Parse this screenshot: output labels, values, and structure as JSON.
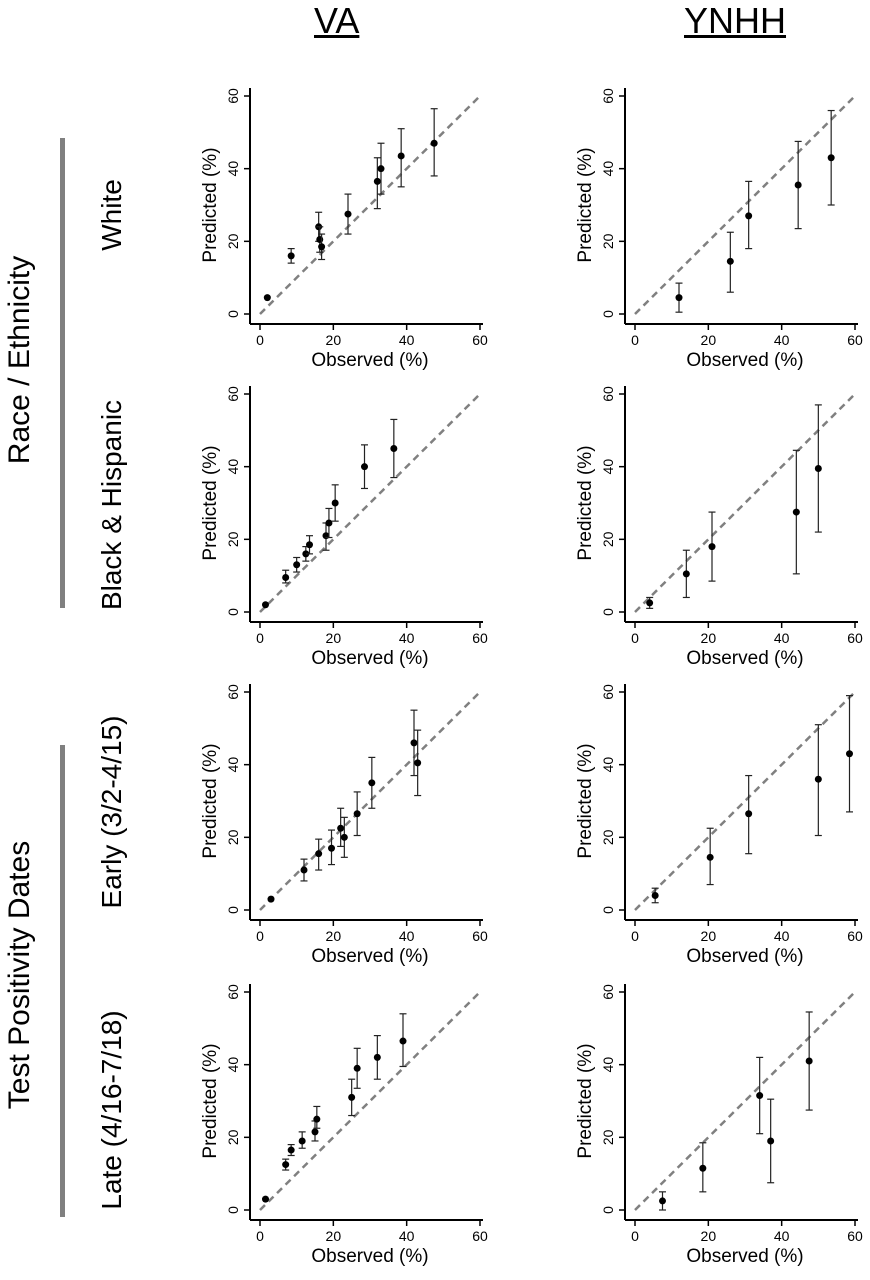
{
  "column_titles": [
    "VA",
    "YNHH"
  ],
  "group_labels": [
    "Race / Ethnicity",
    "Test Positivity Dates"
  ],
  "row_labels": [
    "White",
    "Black & Hispanic",
    "Early (3/2-4/15)",
    "Late (4/16-7/18)"
  ],
  "colors": {
    "points": "#000000",
    "reference_line": "#808080",
    "group_bar": "#808080"
  },
  "chart_data": [
    {
      "type": "scatter",
      "column": "VA",
      "row": "White",
      "xlabel": "Observed (%)",
      "ylabel": "Predicted (%)",
      "xlim": [
        0,
        60
      ],
      "ylim": [
        0,
        60
      ],
      "xticks": [
        0,
        20,
        40,
        60
      ],
      "yticks": [
        0,
        20,
        40,
        60
      ],
      "reference_line": "y = x",
      "points": [
        {
          "x": 2,
          "y": 4.5
        },
        {
          "x": 8.5,
          "y": 16,
          "lo": 14,
          "hi": 18
        },
        {
          "x": 16,
          "y": 24,
          "lo": 20,
          "hi": 28
        },
        {
          "x": 16.3,
          "y": 20.5,
          "lo": 17,
          "hi": 24
        },
        {
          "x": 16.8,
          "y": 18.5,
          "lo": 15,
          "hi": 22
        },
        {
          "x": 24,
          "y": 27.5,
          "lo": 22,
          "hi": 33
        },
        {
          "x": 32,
          "y": 36.5,
          "lo": 29,
          "hi": 43
        },
        {
          "x": 33,
          "y": 40,
          "lo": 33,
          "hi": 47
        },
        {
          "x": 38.5,
          "y": 43.5,
          "lo": 35,
          "hi": 51
        },
        {
          "x": 47.5,
          "y": 47,
          "lo": 38,
          "hi": 56.5
        }
      ]
    },
    {
      "type": "scatter",
      "column": "YNHH",
      "row": "White",
      "xlabel": "Observed (%)",
      "ylabel": "Predicted (%)",
      "xlim": [
        0,
        60
      ],
      "ylim": [
        0,
        60
      ],
      "xticks": [
        0,
        20,
        40,
        60
      ],
      "yticks": [
        0,
        20,
        40,
        60
      ],
      "reference_line": "y = x",
      "points": [
        {
          "x": 12,
          "y": 4.5,
          "lo": 0.5,
          "hi": 8.5
        },
        {
          "x": 26,
          "y": 14.5,
          "lo": 6,
          "hi": 22.5
        },
        {
          "x": 31,
          "y": 27,
          "lo": 18,
          "hi": 36.5
        },
        {
          "x": 44.5,
          "y": 35.5,
          "lo": 23.5,
          "hi": 47.5
        },
        {
          "x": 53.5,
          "y": 43,
          "lo": 30,
          "hi": 56
        }
      ]
    },
    {
      "type": "scatter",
      "column": "VA",
      "row": "Black & Hispanic",
      "xlabel": "Observed (%)",
      "ylabel": "Predicted (%)",
      "xlim": [
        0,
        60
      ],
      "ylim": [
        0,
        60
      ],
      "xticks": [
        0,
        20,
        40,
        60
      ],
      "yticks": [
        0,
        20,
        40,
        60
      ],
      "reference_line": "y = x",
      "points": [
        {
          "x": 1.5,
          "y": 2
        },
        {
          "x": 7,
          "y": 9.5,
          "lo": 8,
          "hi": 11.5
        },
        {
          "x": 10,
          "y": 13,
          "lo": 11,
          "hi": 15
        },
        {
          "x": 12.5,
          "y": 16,
          "lo": 14,
          "hi": 18
        },
        {
          "x": 13.5,
          "y": 18.5,
          "lo": 16,
          "hi": 21
        },
        {
          "x": 18,
          "y": 21,
          "lo": 17,
          "hi": 24.5
        },
        {
          "x": 18.8,
          "y": 24.5,
          "lo": 20.5,
          "hi": 28.5
        },
        {
          "x": 20.5,
          "y": 30,
          "lo": 25,
          "hi": 35
        },
        {
          "x": 28.5,
          "y": 40,
          "lo": 34,
          "hi": 46
        },
        {
          "x": 36.5,
          "y": 45,
          "lo": 37,
          "hi": 53
        }
      ]
    },
    {
      "type": "scatter",
      "column": "YNHH",
      "row": "Black & Hispanic",
      "xlabel": "Observed (%)",
      "ylabel": "Predicted (%)",
      "xlim": [
        0,
        60
      ],
      "ylim": [
        0,
        60
      ],
      "xticks": [
        0,
        20,
        40,
        60
      ],
      "yticks": [
        0,
        20,
        40,
        60
      ],
      "reference_line": "y = x",
      "points": [
        {
          "x": 4,
          "y": 2.5,
          "lo": 1,
          "hi": 4
        },
        {
          "x": 14,
          "y": 10.5,
          "lo": 4,
          "hi": 17
        },
        {
          "x": 21,
          "y": 18,
          "lo": 8.5,
          "hi": 27.5
        },
        {
          "x": 44,
          "y": 27.5,
          "lo": 10.5,
          "hi": 44.5
        },
        {
          "x": 50,
          "y": 39.5,
          "lo": 22,
          "hi": 57
        }
      ]
    },
    {
      "type": "scatter",
      "column": "VA",
      "row": "Early (3/2-4/15)",
      "xlabel": "Observed (%)",
      "ylabel": "Predicted (%)",
      "xlim": [
        0,
        60
      ],
      "ylim": [
        0,
        60
      ],
      "xticks": [
        0,
        20,
        40,
        60
      ],
      "yticks": [
        0,
        20,
        40,
        60
      ],
      "reference_line": "y = x",
      "points": [
        {
          "x": 3,
          "y": 3
        },
        {
          "x": 12,
          "y": 11,
          "lo": 8,
          "hi": 14
        },
        {
          "x": 16,
          "y": 15.5,
          "lo": 11,
          "hi": 19.5
        },
        {
          "x": 19.5,
          "y": 17,
          "lo": 12.5,
          "hi": 22
        },
        {
          "x": 22,
          "y": 22.5,
          "lo": 17.5,
          "hi": 28
        },
        {
          "x": 23,
          "y": 20,
          "lo": 14.5,
          "hi": 25.5
        },
        {
          "x": 26.5,
          "y": 26.5,
          "lo": 20.5,
          "hi": 32.5
        },
        {
          "x": 30.5,
          "y": 35,
          "lo": 28,
          "hi": 42
        },
        {
          "x": 42,
          "y": 46,
          "lo": 37,
          "hi": 55
        },
        {
          "x": 43,
          "y": 40.5,
          "lo": 31.5,
          "hi": 49.5
        }
      ]
    },
    {
      "type": "scatter",
      "column": "YNHH",
      "row": "Early (3/2-4/15)",
      "xlabel": "Observed (%)",
      "ylabel": "Predicted (%)",
      "xlim": [
        0,
        60
      ],
      "ylim": [
        0,
        60
      ],
      "xticks": [
        0,
        20,
        40,
        60
      ],
      "yticks": [
        0,
        20,
        40,
        60
      ],
      "reference_line": "y = x",
      "points": [
        {
          "x": 5.5,
          "y": 4,
          "lo": 2,
          "hi": 6
        },
        {
          "x": 20.5,
          "y": 14.5,
          "lo": 7,
          "hi": 22.5
        },
        {
          "x": 31,
          "y": 26.5,
          "lo": 15.5,
          "hi": 37
        },
        {
          "x": 50,
          "y": 36,
          "lo": 20.5,
          "hi": 51
        },
        {
          "x": 58.5,
          "y": 43,
          "lo": 27,
          "hi": 59
        }
      ]
    },
    {
      "type": "scatter",
      "column": "VA",
      "row": "Late (4/16-7/18)",
      "xlabel": "Observed (%)",
      "ylabel": "Predicted (%)",
      "xlim": [
        0,
        60
      ],
      "ylim": [
        0,
        60
      ],
      "xticks": [
        0,
        20,
        40,
        60
      ],
      "yticks": [
        0,
        20,
        40,
        60
      ],
      "reference_line": "y = x",
      "points": [
        {
          "x": 1.5,
          "y": 3
        },
        {
          "x": 7,
          "y": 12.5,
          "lo": 11,
          "hi": 14
        },
        {
          "x": 8.5,
          "y": 16.5,
          "lo": 15,
          "hi": 18
        },
        {
          "x": 11.5,
          "y": 19,
          "lo": 17,
          "hi": 21.5
        },
        {
          "x": 15,
          "y": 21.5,
          "lo": 19,
          "hi": 24.5
        },
        {
          "x": 15.5,
          "y": 25,
          "lo": 22.5,
          "hi": 28.5
        },
        {
          "x": 25,
          "y": 31,
          "lo": 26,
          "hi": 36
        },
        {
          "x": 26.5,
          "y": 39,
          "lo": 33.5,
          "hi": 44.5
        },
        {
          "x": 32,
          "y": 42,
          "lo": 36,
          "hi": 48
        },
        {
          "x": 39,
          "y": 46.5,
          "lo": 39.5,
          "hi": 54
        }
      ]
    },
    {
      "type": "scatter",
      "column": "YNHH",
      "row": "Late (4/16-7/18)",
      "xlabel": "Observed (%)",
      "ylabel": "Predicted (%)",
      "xlim": [
        0,
        60
      ],
      "ylim": [
        0,
        60
      ],
      "xticks": [
        0,
        20,
        40,
        60
      ],
      "yticks": [
        0,
        20,
        40,
        60
      ],
      "reference_line": "y = x",
      "points": [
        {
          "x": 7.5,
          "y": 2.5,
          "lo": 0,
          "hi": 5
        },
        {
          "x": 18.5,
          "y": 11.5,
          "lo": 5,
          "hi": 18.5
        },
        {
          "x": 34,
          "y": 31.5,
          "lo": 21,
          "hi": 42
        },
        {
          "x": 37,
          "y": 19,
          "lo": 7.5,
          "hi": 30.5
        },
        {
          "x": 47.5,
          "y": 41,
          "lo": 27.5,
          "hi": 54.5
        }
      ]
    }
  ]
}
